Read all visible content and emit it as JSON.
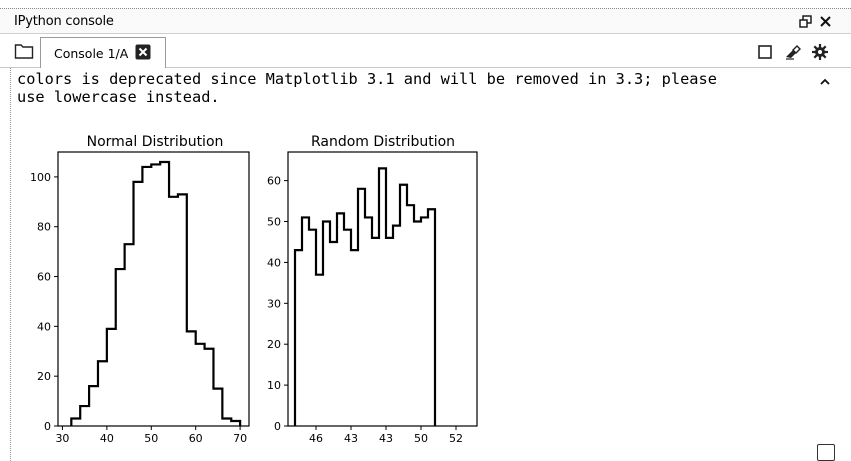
{
  "window": {
    "title": "IPython console",
    "restore_icon": "restore-window-icon",
    "close_icon": "close-icon"
  },
  "tabs": [
    {
      "label": "Console 1/A",
      "close_icon": "close-tab-icon"
    }
  ],
  "toolbar": {
    "folder_icon": "folder-icon",
    "stop_icon": "stop-square-icon",
    "clear_icon": "eraser-icon",
    "options_icon": "gear-icon"
  },
  "console": {
    "lines": [
      "colors is deprecated since Matplotlib 3.1 and will be removed in 3.3; please",
      "use lowercase instead."
    ]
  },
  "chart_data": [
    {
      "type": "bar",
      "style": "step histogram",
      "title": "Normal Distribution",
      "xlim": [
        29,
        72
      ],
      "ylim": [
        0,
        110
      ],
      "xticks": [
        30,
        40,
        50,
        60,
        70
      ],
      "yticks": [
        0,
        20,
        40,
        60,
        80,
        100
      ],
      "bin_edges": [
        32,
        34,
        36,
        38,
        40,
        42,
        44,
        46,
        48,
        50,
        52,
        54,
        56,
        58,
        60,
        62,
        64,
        66,
        68,
        70
      ],
      "values": [
        3,
        8,
        16,
        26,
        39,
        63,
        73,
        98,
        104,
        105,
        106,
        92,
        93,
        38,
        33,
        31,
        15,
        3,
        2
      ],
      "color": "#000000"
    },
    {
      "type": "bar",
      "style": "step histogram",
      "title": "Random Distribution",
      "xlim": [
        -1,
        26
      ],
      "ylim": [
        0,
        67
      ],
      "xticks": [
        3,
        8,
        13,
        18,
        23
      ],
      "xtick_labels": [
        "46",
        "43",
        "43",
        "50",
        "52"
      ],
      "yticks": [
        0,
        10,
        20,
        30,
        40,
        50,
        60
      ],
      "values": [
        43,
        51,
        48,
        37,
        50,
        45,
        52,
        48,
        43,
        58,
        51,
        46,
        63,
        46,
        49,
        59,
        54,
        50,
        51,
        53
      ],
      "color": "#000000"
    }
  ]
}
